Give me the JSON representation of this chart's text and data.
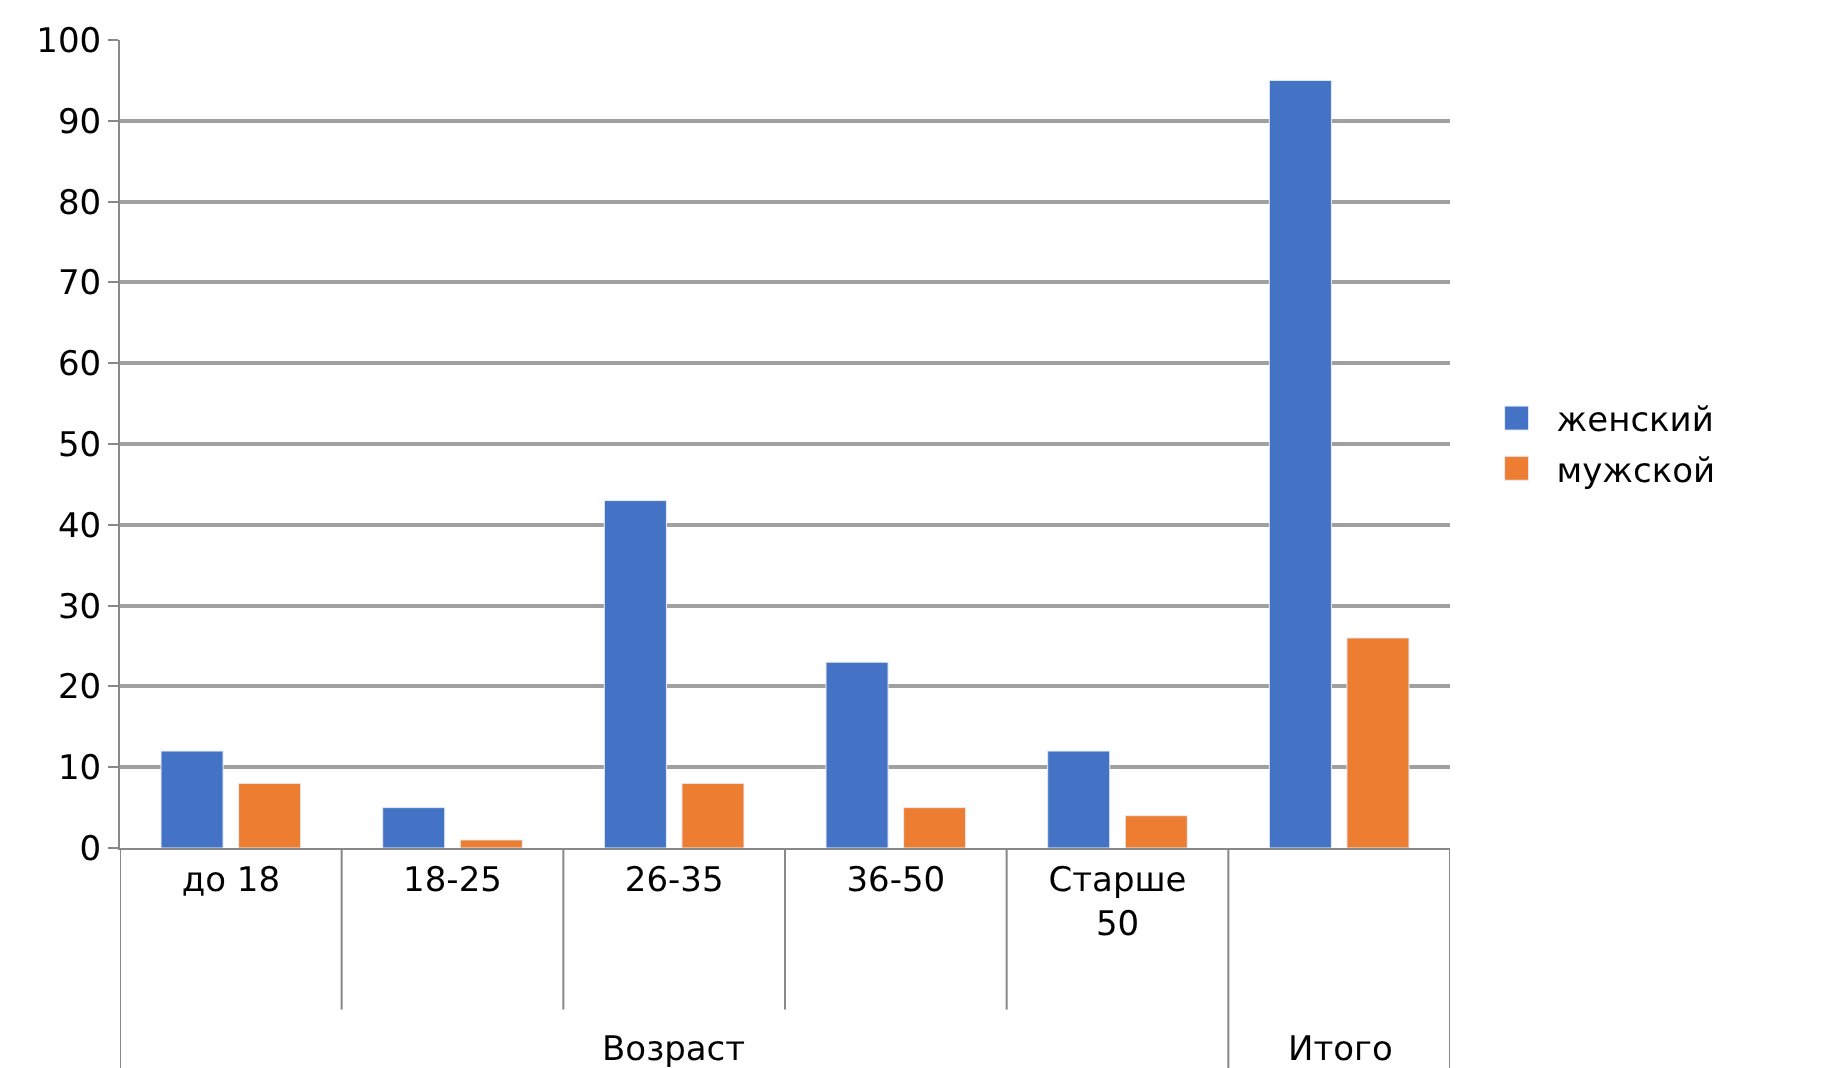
{
  "chart_data": {
    "type": "bar",
    "categories": [
      "до 18",
      "18-25",
      "26-35",
      "36-50",
      "Старше 50",
      null
    ],
    "series": [
      {
        "name": "женский",
        "color": "#4472c4",
        "values": [
          12,
          5,
          43,
          23,
          12,
          95
        ]
      },
      {
        "name": "мужской",
        "color": "#ed7d31",
        "values": [
          8,
          1,
          8,
          5,
          4,
          26
        ]
      }
    ],
    "ylim": [
      0,
      100
    ],
    "yticks": [
      0,
      10,
      20,
      30,
      40,
      50,
      60,
      70,
      80,
      90,
      100
    ],
    "grid": "y",
    "legend": "right",
    "annotations": [
      "Возраст",
      "Итого"
    ]
  }
}
